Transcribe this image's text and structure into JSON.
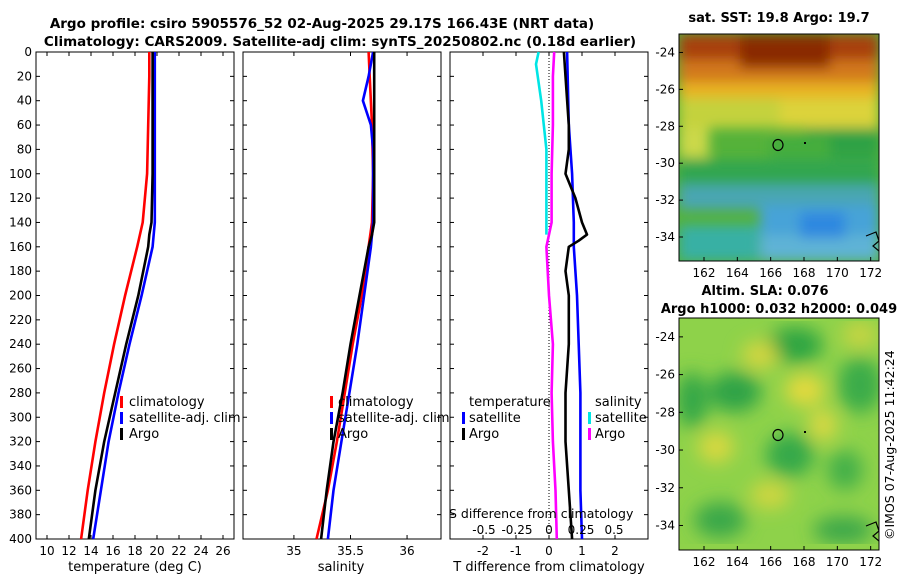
{
  "title": {
    "line1": "Argo profile: csiro 5905576_52 02-Aug-2025 29.17S 166.43E (NRT data)",
    "line2": "Climatology: CARS2009. Satellite-adj clim: synTS_20250802.nc (0.18d earlier)"
  },
  "watermark": "©IMOS 07-Aug-2025 11:42:24",
  "colors": {
    "climatology": "#ff0000",
    "satellite": "#0000ff",
    "argo": "#000000",
    "satellite_salinity": "#00e5e5",
    "argo_salinity": "#ff00ff"
  },
  "chart_data": [
    {
      "id": "temperature",
      "type": "line",
      "xlabel": "temperature (deg C)",
      "ylabel": "",
      "xlim": [
        9,
        27
      ],
      "ylim": [
        400,
        0
      ],
      "xticks": [
        10,
        12,
        14,
        16,
        18,
        20,
        22,
        24,
        26
      ],
      "yticks": [
        0,
        20,
        40,
        60,
        80,
        100,
        120,
        140,
        160,
        180,
        200,
        220,
        240,
        260,
        280,
        300,
        320,
        340,
        360,
        380,
        400
      ],
      "legend": {
        "placement": "lower-right",
        "entries": [
          "climatology",
          "satellite-adj. clim",
          "Argo"
        ]
      },
      "series": [
        {
          "name": "climatology",
          "color": "#ff0000",
          "depth": [
            0,
            20,
            60,
            100,
            140,
            160,
            200,
            240,
            280,
            320,
            360,
            400
          ],
          "values": [
            19.3,
            19.3,
            19.2,
            19.1,
            18.7,
            18.2,
            17.1,
            16.1,
            15.2,
            14.4,
            13.7,
            13.1
          ]
        },
        {
          "name": "satellite-adj. clim",
          "color": "#0000ff",
          "depth": [
            0,
            20,
            60,
            100,
            140,
            160,
            200,
            240,
            280,
            320,
            360,
            400
          ],
          "values": [
            19.8,
            19.8,
            19.8,
            19.8,
            19.8,
            19.6,
            18.6,
            17.5,
            16.5,
            15.6,
            14.9,
            14.2
          ]
        },
        {
          "name": "Argo",
          "color": "#000000",
          "depth": [
            0,
            20,
            60,
            100,
            140,
            150,
            160,
            200,
            240,
            280,
            320,
            360,
            400
          ],
          "values": [
            19.6,
            19.6,
            19.6,
            19.6,
            19.5,
            19.3,
            19.2,
            18.3,
            17.2,
            16.2,
            15.2,
            14.4,
            13.8
          ]
        }
      ]
    },
    {
      "id": "salinity",
      "type": "line",
      "xlabel": "salinity",
      "ylabel": "",
      "xlim": [
        34.55,
        36.3
      ],
      "ylim": [
        400,
        0
      ],
      "xticks": [
        35,
        35.5,
        36
      ],
      "legend": {
        "placement": "lower-right",
        "entries": [
          "climatology",
          "satellite-adj. clim",
          "Argo"
        ]
      },
      "series": [
        {
          "name": "climatology",
          "color": "#ff0000",
          "depth": [
            0,
            20,
            60,
            100,
            140,
            160,
            200,
            240,
            280,
            320,
            360,
            400
          ],
          "values": [
            35.66,
            35.67,
            35.69,
            35.7,
            35.69,
            35.66,
            35.6,
            35.52,
            35.45,
            35.38,
            35.3,
            35.2
          ]
        },
        {
          "name": "satellite-adj. clim",
          "color": "#0000ff",
          "depth": [
            0,
            20,
            40,
            60,
            80,
            100,
            140,
            160,
            200,
            240,
            280,
            320,
            360,
            400
          ],
          "values": [
            35.7,
            35.66,
            35.61,
            35.68,
            35.7,
            35.7,
            35.7,
            35.68,
            35.62,
            35.56,
            35.49,
            35.42,
            35.35,
            35.3
          ]
        },
        {
          "name": "Argo",
          "color": "#000000",
          "depth": [
            0,
            20,
            60,
            100,
            140,
            150,
            160,
            200,
            240,
            280,
            320,
            360,
            400
          ],
          "values": [
            35.71,
            35.71,
            35.71,
            35.71,
            35.71,
            35.69,
            35.66,
            35.58,
            35.5,
            35.43,
            35.35,
            35.29,
            35.24
          ]
        }
      ]
    },
    {
      "id": "difference",
      "type": "line",
      "xlabel": "T difference from climatology",
      "top_label": "S difference from climatology",
      "xlim": [
        -3,
        3
      ],
      "ylim": [
        400,
        0
      ],
      "xticks": [
        -2,
        -1,
        0,
        1,
        2
      ],
      "top_ticks": [
        "-0.5",
        "-0.25",
        "0",
        "0.25",
        "0.5"
      ],
      "legend": {
        "temperature_title": "temperature",
        "salinity_title": "salinity",
        "entries": [
          {
            "group": "temperature",
            "label": "satellite",
            "color": "#0000ff"
          },
          {
            "group": "temperature",
            "label": "Argo",
            "color": "#000000"
          },
          {
            "group": "salinity",
            "label": "satellite",
            "color": "#00e5e5"
          },
          {
            "group": "salinity",
            "label": "Argo",
            "color": "#ff00ff"
          }
        ]
      },
      "series": [
        {
          "name": "T satellite",
          "color": "#0000ff",
          "depth": [
            0,
            60,
            100,
            140,
            160,
            200,
            240,
            280,
            320,
            360,
            400
          ],
          "values": [
            0.55,
            0.6,
            0.7,
            0.75,
            0.75,
            0.85,
            0.9,
            0.95,
            0.95,
            0.95,
            1.0
          ]
        },
        {
          "name": "T Argo",
          "color": "#000000",
          "depth": [
            0,
            20,
            60,
            80,
            100,
            120,
            140,
            150,
            155,
            160,
            180,
            200,
            240,
            280,
            320,
            360,
            400
          ],
          "values": [
            0.45,
            0.5,
            0.6,
            0.6,
            0.5,
            0.8,
            1.0,
            1.15,
            0.9,
            0.6,
            0.5,
            0.6,
            0.6,
            0.5,
            0.5,
            0.6,
            0.7
          ]
        },
        {
          "name": "S satellite",
          "color": "#00e5e5",
          "depth": [
            0,
            10,
            40,
            80,
            120,
            150
          ],
          "values": [
            -0.04,
            -0.05,
            -0.03,
            -0.01,
            -0.01,
            -0.01
          ]
        },
        {
          "name": "S Argo",
          "color": "#ff00ff",
          "depth": [
            0,
            20,
            60,
            100,
            140,
            160,
            200,
            240,
            280,
            320,
            360,
            400
          ],
          "values": [
            0.02,
            0.015,
            0.015,
            0.01,
            0.01,
            -0.01,
            0.0,
            0.015,
            0.01,
            0.015,
            0.025,
            0.03
          ]
        }
      ]
    },
    {
      "id": "sst_map",
      "type": "heatmap",
      "title": "sat. SST: 19.8 Argo: 19.7",
      "xlim": [
        160.5,
        172.5
      ],
      "ylim": [
        -35.3,
        -23
      ]
    },
    {
      "id": "sla_map",
      "type": "heatmap",
      "title_line1": "Altim. SLA: 0.076",
      "title_line2": "Argo h1000: 0.032 h2000: 0.049",
      "xlim": [
        160.5,
        172.5
      ],
      "ylim": [
        -35.3,
        -23
      ]
    }
  ],
  "maps": {
    "xticks": [
      "162",
      "164",
      "166",
      "168",
      "170",
      "172"
    ],
    "yticks": [
      "-24",
      "-26",
      "-28",
      "-30",
      "-32",
      "-34"
    ],
    "float_lon": 166.43,
    "float_lat": -29.17
  }
}
